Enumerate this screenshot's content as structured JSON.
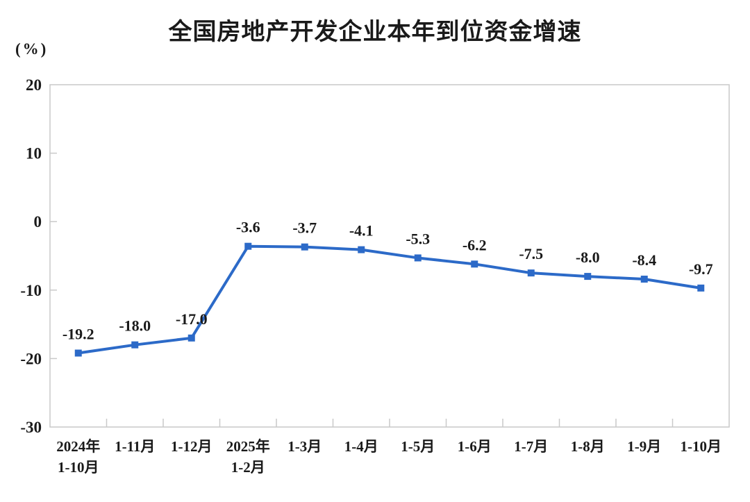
{
  "chart_data": {
    "type": "line",
    "title": "全国房地产开发企业本年到位资金增速",
    "unit_label": "(%)",
    "categories": [
      [
        "2024年",
        "1-10月"
      ],
      [
        "1-11月"
      ],
      [
        "1-12月"
      ],
      [
        "2025年",
        "1-2月"
      ],
      [
        "1-3月"
      ],
      [
        "1-4月"
      ],
      [
        "1-5月"
      ],
      [
        "1-6月"
      ],
      [
        "1-7月"
      ],
      [
        "1-8月"
      ],
      [
        "1-9月"
      ],
      [
        "1-10月"
      ]
    ],
    "values": [
      -19.2,
      -18.0,
      -17.0,
      -3.6,
      -3.7,
      -4.1,
      -5.3,
      -6.2,
      -7.5,
      -8.0,
      -8.4,
      -9.7
    ],
    "point_labels": [
      "-19.2",
      "-18.0",
      "-17.0",
      "-3.6",
      "-3.7",
      "-4.1",
      "-5.3",
      "-6.2",
      "-7.5",
      "-8.0",
      "-8.4",
      "-9.7"
    ],
    "y_ticks": [
      20,
      10,
      0,
      -10,
      -20,
      -30
    ],
    "ylim": [
      -30,
      20
    ],
    "grid": "off",
    "legend": "none",
    "marker": "square",
    "colors": {
      "line": "#2C6AC8",
      "axis": "#C9C9C9",
      "text": "#1A1A1A",
      "background": "#FFFFFF"
    }
  }
}
